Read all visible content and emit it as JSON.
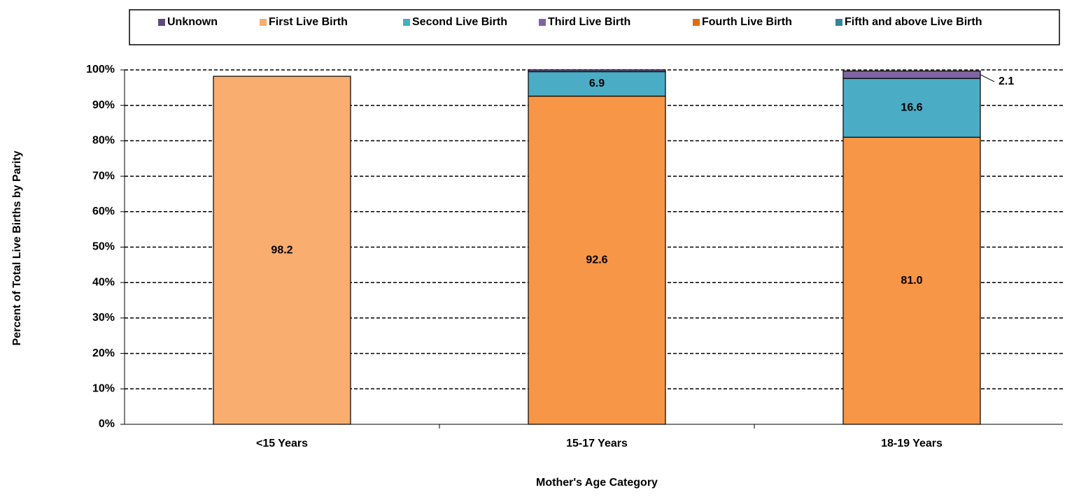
{
  "chart_data": {
    "type": "stacked_bar",
    "categories": [
      "<15 Years",
      "15-17 Years",
      "18-19 Years"
    ],
    "series": [
      {
        "name": "Unknown",
        "color": "#604a7b",
        "values": [
          null,
          null,
          null
        ]
      },
      {
        "name": "First Live Birth",
        "color": "#f9ad6e",
        "point_colors": [
          "#f9ad6e",
          "#f79646",
          "#f79646"
        ],
        "values": [
          98.2,
          92.6,
          81.0
        ],
        "value_labels": [
          "98.2",
          "92.6",
          "81.0"
        ]
      },
      {
        "name": "Second Live Birth",
        "color": "#4bacc6",
        "values": [
          null,
          6.9,
          16.6
        ],
        "value_labels": [
          null,
          "6.9",
          "16.6"
        ]
      },
      {
        "name": "Third Live Birth",
        "color": "#8064a2",
        "values": [
          null,
          0.5,
          2.1
        ],
        "value_labels": [
          null,
          null,
          "2.1"
        ]
      },
      {
        "name": "Fourth Live Birth",
        "color": "#e46c0a",
        "values": [
          null,
          null,
          null
        ]
      },
      {
        "name": "Fifth and above Live Birth",
        "color": "#31859c",
        "values": [
          null,
          null,
          null
        ]
      }
    ],
    "ylim": [
      0,
      100
    ],
    "yticks": [
      {
        "value": 0,
        "label": "0%"
      },
      {
        "value": 10,
        "label": "10%"
      },
      {
        "value": 20,
        "label": "20%"
      },
      {
        "value": 30,
        "label": "30%"
      },
      {
        "value": 40,
        "label": "40%"
      },
      {
        "value": 50,
        "label": "50%"
      },
      {
        "value": 60,
        "label": "60%"
      },
      {
        "value": 70,
        "label": "70%"
      },
      {
        "value": 80,
        "label": "80%"
      },
      {
        "value": 90,
        "label": "90%"
      },
      {
        "value": 100,
        "label": "100%"
      }
    ],
    "grid": true,
    "legend": "top",
    "x_label": "Mother's Age Category",
    "y_label": "Percent of Total Live Births by Parity"
  }
}
